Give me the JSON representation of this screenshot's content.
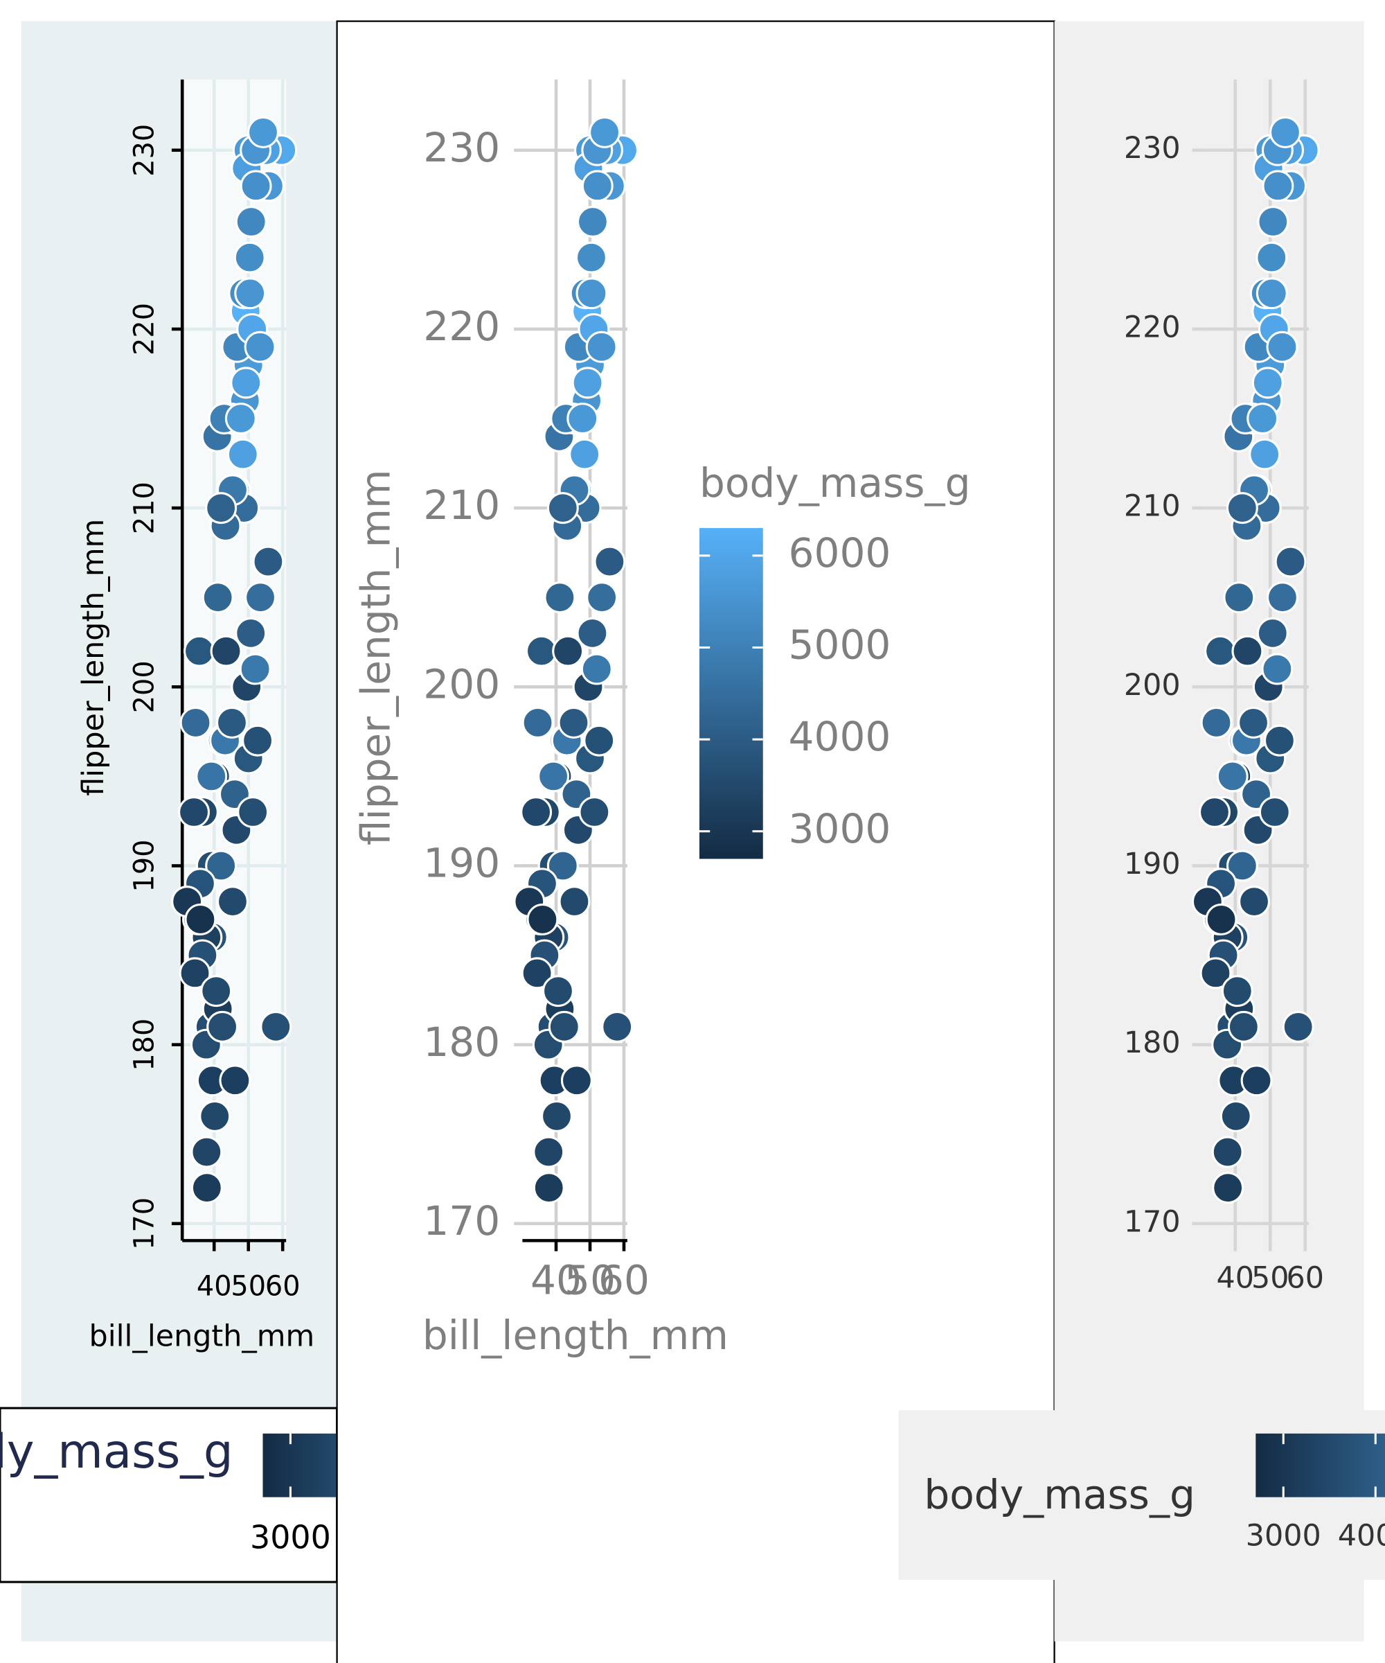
{
  "chart_data": [
    {
      "type": "scatter",
      "x_label": "bill_length_mm",
      "y_label": "flipper_length_mm",
      "legend_position": "bottom",
      "x": [
        39.1,
        39.5,
        40.3,
        36.7,
        39.3,
        38.9,
        39.2,
        34.1,
        42,
        37.8,
        41.1,
        34.6,
        36.6,
        42.5,
        34.4,
        46,
        37.8,
        37.7,
        35.9,
        35.3,
        40.6,
        37.9,
        39.5,
        32.1,
        41.1,
        40.2,
        44.1,
        43.2,
        35.7,
        36,
        46.5,
        50,
        51.3,
        45.4,
        52.7,
        45.2,
        46.1,
        55.8,
        58,
        49.5,
        42.4,
        53.5,
        52,
        50.7,
        43.5,
        46.1,
        50,
        48.7,
        50,
        47.6,
        45.4,
        46.7,
        43.3,
        40.9,
        49,
        48.4,
        49.3,
        42,
        49.2,
        48.7,
        45.1,
        42.9,
        47.8,
        50.5,
        49.5,
        59.6,
        55.9,
        51.1,
        55.1,
        52.1,
        53.4,
        54.3,
        52.2,
        50.4,
        50.8
      ],
      "values": [
        181,
        186,
        195,
        193,
        190,
        181,
        195,
        193,
        190,
        186,
        182,
        198,
        185,
        197,
        184,
        194,
        174,
        180,
        189,
        187,
        183,
        172,
        178,
        188,
        205,
        176,
        210,
        197,
        202,
        187,
        192,
        196,
        193,
        188,
        197,
        198,
        178,
        207,
        181,
        200,
        181,
        205,
        201,
        203,
        202,
        211,
        230,
        210,
        218,
        215,
        211,
        219,
        209,
        214,
        216,
        213,
        217,
        210,
        221,
        222,
        215,
        215,
        215,
        222,
        229,
        230,
        228,
        220,
        230,
        230,
        219,
        231,
        228,
        224,
        226
      ],
      "color_values": [
        3750,
        3800,
        3250,
        3450,
        3650,
        3625,
        4675,
        3475,
        4250,
        3300,
        3200,
        4400,
        3700,
        4500,
        3325,
        4200,
        3400,
        3600,
        3800,
        3800,
        3550,
        3150,
        3250,
        3050,
        4300,
        3450,
        4000,
        4775,
        3900,
        2900,
        3500,
        3900,
        3650,
        3525,
        3725,
        3950,
        3250,
        4000,
        3700,
        3400,
        3600,
        4500,
        4800,
        4050,
        3400,
        4500,
        5700,
        4450,
        5700,
        5400,
        4800,
        5200,
        4400,
        4650,
        5550,
        5850,
        5850,
        4150,
        6300,
        5350,
        5000,
        5000,
        5650,
        5550,
        5800,
        6050,
        5600,
        6000,
        5850,
        5550,
        5500,
        5650,
        5400,
        5350,
        5200
      ],
      "color_scale": {
        "title": "body_mass_g",
        "lim": [
          2700,
          6300
        ],
        "ticks": [
          3000,
          4000,
          5000,
          6000
        ],
        "colors": [
          "#132B43",
          "#56B1F7"
        ]
      },
      "xlim": [
        30.7,
        61
      ],
      "xticks": [
        40,
        50,
        60
      ],
      "ylim": [
        169.05,
        233.95
      ],
      "yticks": [
        170,
        180,
        190,
        200,
        210,
        220,
        230
      ],
      "grid": true
    },
    {
      "type": "scatter",
      "x_label": "bill_length_mm",
      "y_label": "flipper_length_mm",
      "legend_position": "right",
      "x": [
        39.1,
        39.5,
        40.3,
        36.7,
        39.3,
        38.9,
        39.2,
        34.1,
        42,
        37.8,
        41.1,
        34.6,
        36.6,
        42.5,
        34.4,
        46,
        37.8,
        37.7,
        35.9,
        35.3,
        40.6,
        37.9,
        39.5,
        32.1,
        41.1,
        40.2,
        44.1,
        43.2,
        35.7,
        36,
        46.5,
        50,
        51.3,
        45.4,
        52.7,
        45.2,
        46.1,
        55.8,
        58,
        49.5,
        42.4,
        53.5,
        52,
        50.7,
        43.5,
        46.1,
        50,
        48.7,
        50,
        47.6,
        45.4,
        46.7,
        43.3,
        40.9,
        49,
        48.4,
        49.3,
        42,
        49.2,
        48.7,
        45.1,
        42.9,
        47.8,
        50.5,
        49.5,
        59.6,
        55.9,
        51.1,
        55.1,
        52.1,
        53.4,
        54.3,
        52.2,
        50.4,
        50.8
      ],
      "values": [
        181,
        186,
        195,
        193,
        190,
        181,
        195,
        193,
        190,
        186,
        182,
        198,
        185,
        197,
        184,
        194,
        174,
        180,
        189,
        187,
        183,
        172,
        178,
        188,
        205,
        176,
        210,
        197,
        202,
        187,
        192,
        196,
        193,
        188,
        197,
        198,
        178,
        207,
        181,
        200,
        181,
        205,
        201,
        203,
        202,
        211,
        230,
        210,
        218,
        215,
        211,
        219,
        209,
        214,
        216,
        213,
        217,
        210,
        221,
        222,
        215,
        215,
        215,
        222,
        229,
        230,
        228,
        220,
        230,
        230,
        219,
        231,
        228,
        224,
        226
      ],
      "color_values": [
        3750,
        3800,
        3250,
        3450,
        3650,
        3625,
        4675,
        3475,
        4250,
        3300,
        3200,
        4400,
        3700,
        4500,
        3325,
        4200,
        3400,
        3600,
        3800,
        3800,
        3550,
        3150,
        3250,
        3050,
        4300,
        3450,
        4000,
        4775,
        3900,
        2900,
        3500,
        3900,
        3650,
        3525,
        3725,
        3950,
        3250,
        4000,
        3700,
        3400,
        3600,
        4500,
        4800,
        4050,
        3400,
        4500,
        5700,
        4450,
        5700,
        5400,
        4800,
        5200,
        4400,
        4650,
        5550,
        5850,
        5850,
        4150,
        6300,
        5350,
        5000,
        5000,
        5650,
        5550,
        5800,
        6050,
        5600,
        6000,
        5850,
        5550,
        5500,
        5650,
        5400,
        5350,
        5200
      ],
      "color_scale": {
        "title": "body_mass_g",
        "lim": [
          2700,
          6300
        ],
        "ticks": [
          3000,
          4000,
          5000,
          6000
        ],
        "colors": [
          "#132B43",
          "#56B1F7"
        ]
      },
      "xlim": [
        30.7,
        61
      ],
      "xticks": [
        40,
        50,
        60
      ],
      "ylim": [
        169.05,
        233.95
      ],
      "yticks": [
        170,
        180,
        190,
        200,
        210,
        220,
        230
      ],
      "grid": true
    },
    {
      "type": "scatter",
      "legend_position": "bottom",
      "x": [
        39.1,
        39.5,
        40.3,
        36.7,
        39.3,
        38.9,
        39.2,
        34.1,
        42,
        37.8,
        41.1,
        34.6,
        36.6,
        42.5,
        34.4,
        46,
        37.8,
        37.7,
        35.9,
        35.3,
        40.6,
        37.9,
        39.5,
        32.1,
        41.1,
        40.2,
        44.1,
        43.2,
        35.7,
        36,
        46.5,
        50,
        51.3,
        45.4,
        52.7,
        45.2,
        46.1,
        55.8,
        58,
        49.5,
        42.4,
        53.5,
        52,
        50.7,
        43.5,
        46.1,
        50,
        48.7,
        50,
        47.6,
        45.4,
        46.7,
        43.3,
        40.9,
        49,
        48.4,
        49.3,
        42,
        49.2,
        48.7,
        45.1,
        42.9,
        47.8,
        50.5,
        49.5,
        59.6,
        55.9,
        51.1,
        55.1,
        52.1,
        53.4,
        54.3,
        52.2,
        50.4,
        50.8
      ],
      "values": [
        181,
        186,
        195,
        193,
        190,
        181,
        195,
        193,
        190,
        186,
        182,
        198,
        185,
        197,
        184,
        194,
        174,
        180,
        189,
        187,
        183,
        172,
        178,
        188,
        205,
        176,
        210,
        197,
        202,
        187,
        192,
        196,
        193,
        188,
        197,
        198,
        178,
        207,
        181,
        200,
        181,
        205,
        201,
        203,
        202,
        211,
        230,
        210,
        218,
        215,
        211,
        219,
        209,
        214,
        216,
        213,
        217,
        210,
        221,
        222,
        215,
        215,
        215,
        222,
        229,
        230,
        228,
        220,
        230,
        230,
        219,
        231,
        228,
        224,
        226
      ],
      "color_values": [
        3750,
        3800,
        3250,
        3450,
        3650,
        3625,
        4675,
        3475,
        4250,
        3300,
        3200,
        4400,
        3700,
        4500,
        3325,
        4200,
        3400,
        3600,
        3800,
        3800,
        3550,
        3150,
        3250,
        3050,
        4300,
        3450,
        4000,
        4775,
        3900,
        2900,
        3500,
        3900,
        3650,
        3525,
        3725,
        3950,
        3250,
        4000,
        3700,
        3400,
        3600,
        4500,
        4800,
        4050,
        3400,
        4500,
        5700,
        4450,
        5700,
        5400,
        4800,
        5200,
        4400,
        4650,
        5550,
        5850,
        5850,
        4150,
        6300,
        5350,
        5000,
        5000,
        5650,
        5550,
        5800,
        6050,
        5600,
        6000,
        5850,
        5550,
        5500,
        5650,
        5400,
        5350,
        5200
      ],
      "color_scale": {
        "title": "body_mass_g",
        "lim": [
          2700,
          6300
        ],
        "ticks": [
          3000,
          4000,
          5000,
          6000
        ],
        "colors": [
          "#132B43",
          "#56B1F7"
        ]
      },
      "xlim": [
        30.7,
        61
      ],
      "xticks": [
        40,
        50,
        60
      ],
      "ylim": [
        169.05,
        233.95
      ],
      "yticks": [
        170,
        180,
        190,
        200,
        210,
        220,
        230
      ],
      "grid": true
    }
  ]
}
